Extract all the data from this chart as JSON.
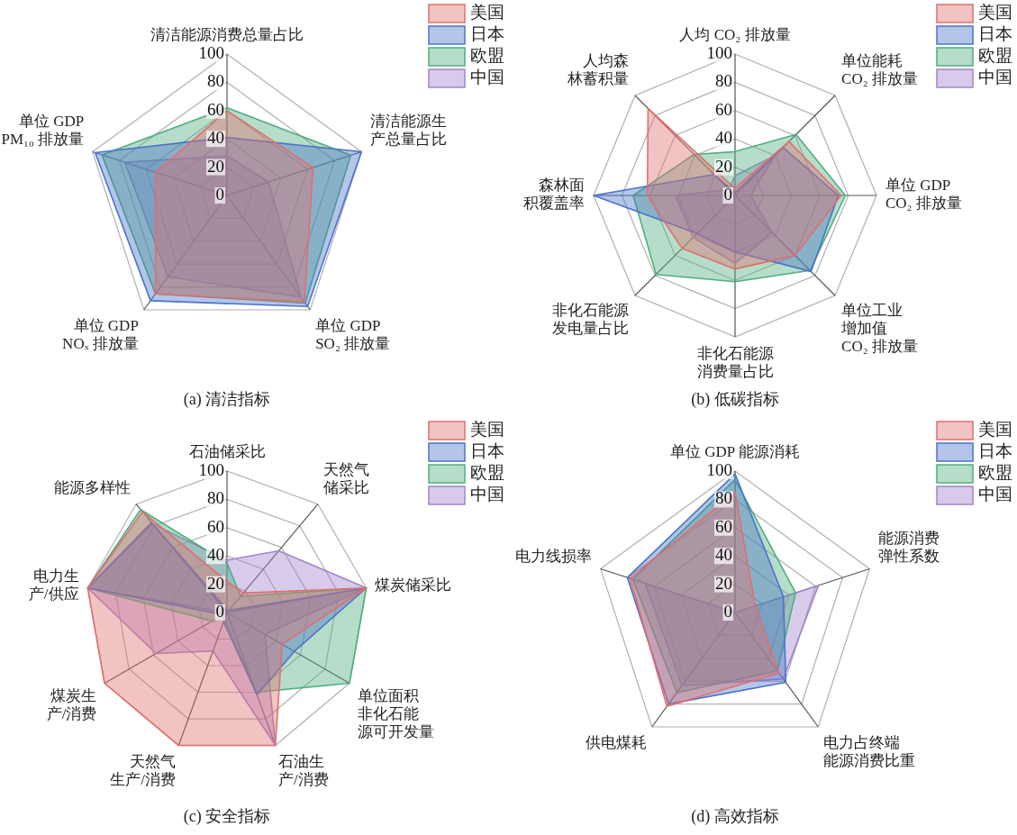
{
  "chart_data": [
    {
      "type": "radar",
      "title": "(a) 清洁指标",
      "categories": [
        "清洁能源消费总量占比",
        "清洁能源生产总量占比",
        "单位 GDP SO₂ 排放量",
        "单位 GDP NOₓ 排放量",
        "单位 GDP PM₁₀ 排放量"
      ],
      "ylim": [
        0,
        100
      ],
      "yticks": [
        0,
        20,
        40,
        60,
        80,
        100
      ],
      "grid": true,
      "legend": "top right",
      "series": [
        {
          "name": "美国",
          "color": "#e06f6f",
          "values": [
            60,
            64,
            93,
            86,
            53
          ]
        },
        {
          "name": "日本",
          "color": "#4a74c9",
          "values": [
            41,
            100,
            97,
            92,
            98
          ]
        },
        {
          "name": "欧盟",
          "color": "#4fae7e",
          "values": [
            62,
            92,
            94,
            86,
            93
          ]
        },
        {
          "name": "中国",
          "color": "#a184cc",
          "values": [
            28,
            31,
            89,
            71,
            76
          ]
        }
      ]
    },
    {
      "type": "radar",
      "title": "(b) 低碳指标",
      "categories": [
        "人均 CO₂ 排放量",
        "单位能耗 CO₂ 排放量",
        "单位 GDP CO₂ 排放量",
        "单位工业增加值 CO₂ 排放量",
        "非化石能源消费量占比",
        "非化石能源发电量占比",
        "森林面积覆盖率",
        "人均森林蓄积量"
      ],
      "ylim": [
        0,
        100
      ],
      "yticks": [
        0,
        20,
        40,
        60,
        80,
        100
      ],
      "grid": true,
      "legend": "top right",
      "series": [
        {
          "name": "美国",
          "color": "#e06f6f",
          "values": [
            5,
            54,
            75,
            60,
            52,
            53,
            62,
            87
          ]
        },
        {
          "name": "日本",
          "color": "#4a74c9",
          "values": [
            2,
            48,
            73,
            76,
            40,
            38,
            100,
            21
          ]
        },
        {
          "name": "欧盟",
          "color": "#4fae7e",
          "values": [
            31,
            61,
            78,
            75,
            61,
            79,
            72,
            41
          ]
        },
        {
          "name": "中国",
          "color": "#a184cc",
          "values": [
            14,
            40,
            11,
            37,
            48,
            42,
            42,
            6
          ]
        }
      ]
    },
    {
      "type": "radar",
      "title": "(c) 安全指标",
      "categories": [
        "石油储采比",
        "天然气储采比",
        "煤炭储采比",
        "单位面积非化石能源可开发量",
        "石油生产/消费",
        "天然气生产/消费",
        "煤炭生产/消费",
        "电力生产/供应",
        "能源多样性"
      ],
      "ylim": [
        0,
        100
      ],
      "yticks": [
        0,
        20,
        40,
        60,
        80,
        100
      ],
      "grid": true,
      "legend": "top right",
      "series": [
        {
          "name": "美国",
          "color": "#e06f6f",
          "values": [
            22,
            18,
            100,
            45,
            100,
            100,
            100,
            100,
            93
          ]
        },
        {
          "name": "日本",
          "color": "#4a74c9",
          "values": [
            2,
            2,
            100,
            55,
            62,
            7,
            3,
            100,
            83
          ]
        },
        {
          "name": "欧盟",
          "color": "#4fae7e",
          "values": [
            35,
            15,
            100,
            100,
            60,
            5,
            12,
            100,
            95
          ]
        },
        {
          "name": "中国",
          "color": "#a184cc",
          "values": [
            37,
            57,
            100,
            31,
            100,
            29,
            58,
            100,
            82
          ]
        }
      ]
    },
    {
      "type": "radar",
      "title": "(d) 高效指标",
      "categories": [
        "单位 GDP 能源消耗",
        "能源消费弹性系数",
        "电力占终端能源消费比重",
        "供电煤耗",
        "电力线损率"
      ],
      "ylim": [
        0,
        100
      ],
      "yticks": [
        0,
        20,
        40,
        60,
        80,
        100
      ],
      "grid": true,
      "legend": "top right",
      "series": [
        {
          "name": "美国",
          "color": "#e06f6f",
          "values": [
            85,
            15,
            53,
            82,
            78
          ]
        },
        {
          "name": "日本",
          "color": "#4a74c9",
          "values": [
            98,
            36,
            61,
            80,
            80
          ]
        },
        {
          "name": "欧盟",
          "color": "#4fae7e",
          "values": [
            94,
            45,
            51,
            70,
            76
          ]
        },
        {
          "name": "中国",
          "color": "#a184cc",
          "values": [
            0,
            62,
            58,
            64,
            67
          ]
        }
      ]
    }
  ]
}
